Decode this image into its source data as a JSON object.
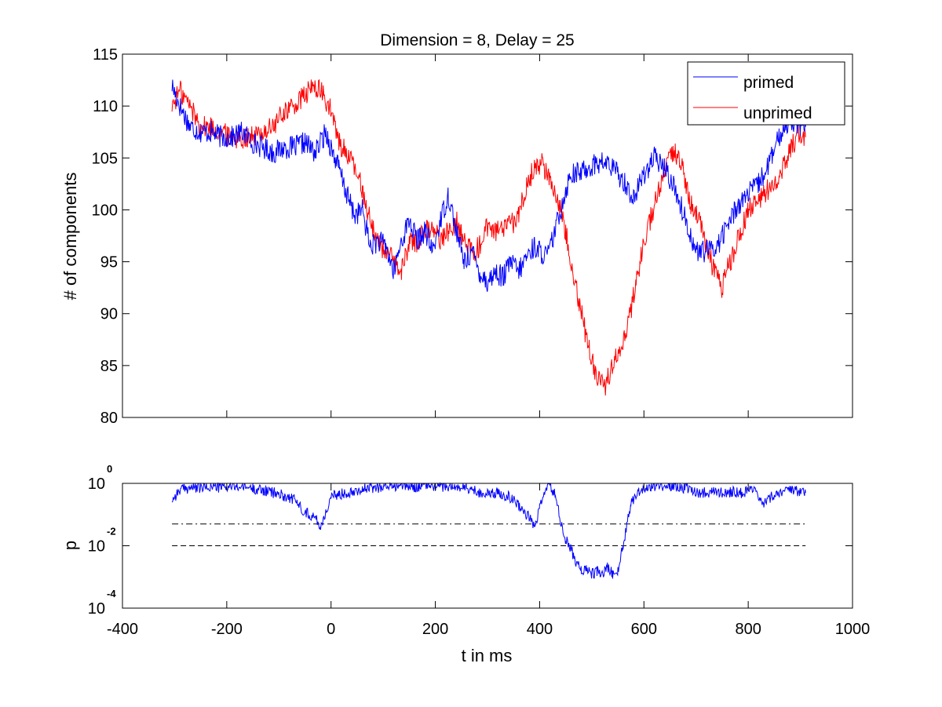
{
  "chart_data": [
    {
      "type": "line",
      "title": "Dimension  = 8, Delay = 25",
      "ylabel": "# of components",
      "xlim": [
        -400,
        1000
      ],
      "ylim": [
        80,
        115
      ],
      "yticks": [
        "80",
        "85",
        "90",
        "95",
        "100",
        "105",
        "110",
        "115"
      ],
      "grid": false,
      "legend": {
        "placement": "top-right",
        "entries": [
          "primed",
          "unprimed"
        ]
      },
      "colors": {
        "primed": "#0000ff",
        "unprimed": "#ff0000"
      },
      "series": [
        {
          "name": "primed",
          "x": [
            -305,
            -290,
            -270,
            -250,
            -230,
            -210,
            -190,
            -170,
            -150,
            -130,
            -110,
            -90,
            -70,
            -50,
            -30,
            -10,
            0,
            15,
            30,
            45,
            60,
            75,
            90,
            105,
            120,
            135,
            150,
            165,
            180,
            195,
            210,
            225,
            240,
            255,
            270,
            285,
            300,
            315,
            330,
            345,
            360,
            375,
            390,
            400,
            415,
            430,
            445,
            460,
            475,
            490,
            510,
            530,
            550,
            565,
            580,
            600,
            620,
            640,
            660,
            680,
            700,
            720,
            740,
            760,
            780,
            800,
            820,
            840,
            860,
            880,
            895,
            910
          ],
          "y": [
            112,
            110,
            108,
            107.5,
            107.5,
            107,
            107,
            107.5,
            106.5,
            106,
            105.5,
            106,
            106,
            106.5,
            105.5,
            107.5,
            106,
            104,
            101.5,
            99.5,
            100,
            96.5,
            97,
            96.5,
            94,
            97,
            99,
            97,
            98,
            96,
            99,
            101.5,
            98,
            95,
            96,
            94,
            93,
            94,
            93.5,
            95,
            94,
            95.5,
            96.5,
            96,
            95.5,
            98,
            101,
            103.5,
            103.5,
            104,
            104.5,
            104.5,
            103.5,
            102.5,
            101,
            103.5,
            105,
            104,
            102,
            99,
            96,
            96,
            96.5,
            98.5,
            100.5,
            101.5,
            102.5,
            104.5,
            107,
            109,
            108,
            108
          ]
        },
        {
          "name": "unprimed",
          "x": [
            -305,
            -290,
            -270,
            -250,
            -230,
            -210,
            -190,
            -170,
            -150,
            -130,
            -110,
            -90,
            -70,
            -50,
            -30,
            -15,
            0,
            15,
            30,
            45,
            60,
            75,
            90,
            105,
            120,
            135,
            150,
            165,
            180,
            195,
            210,
            225,
            240,
            255,
            270,
            285,
            300,
            315,
            330,
            345,
            360,
            375,
            390,
            405,
            420,
            435,
            450,
            465,
            480,
            495,
            510,
            525,
            540,
            555,
            570,
            585,
            600,
            615,
            630,
            645,
            660,
            675,
            690,
            705,
            720,
            735,
            750,
            765,
            780,
            800,
            820,
            840,
            860,
            880,
            895,
            910
          ],
          "y": [
            110,
            111.5,
            110,
            108,
            108,
            107.5,
            107,
            107,
            107,
            107.5,
            108,
            109.5,
            110,
            111,
            112,
            111,
            109.5,
            106.5,
            105.5,
            104,
            102,
            99,
            97,
            96,
            95,
            94,
            97,
            97,
            98,
            98.5,
            97,
            98,
            99,
            97,
            96,
            96.5,
            98.5,
            98,
            98,
            98.5,
            99.5,
            102.5,
            104,
            104.5,
            103,
            101,
            98,
            94,
            90,
            86.5,
            84,
            83,
            85,
            87,
            89,
            93,
            97,
            99.5,
            102,
            104.5,
            105.5,
            104,
            100.5,
            99,
            96.5,
            94,
            92.5,
            95,
            97,
            100,
            101,
            102,
            103.5,
            105.5,
            107.5,
            107
          ]
        }
      ]
    },
    {
      "type": "line",
      "xlabel": "t in ms",
      "ylabel": "p",
      "xlim": [
        -400,
        1000
      ],
      "xticks": [
        "-400",
        "-200",
        "0",
        "200",
        "400",
        "600",
        "800",
        "1000"
      ],
      "yscale": "log",
      "ylim": [
        0.0001,
        1
      ],
      "yticks": [
        {
          "base": "10",
          "exp": "-4"
        },
        {
          "base": "10",
          "exp": "-2"
        },
        {
          "base": "10",
          "exp": "0"
        }
      ],
      "reference_lines": [
        {
          "value": 0.05,
          "style": "dash-dot"
        },
        {
          "value": 0.01,
          "style": "dashed"
        }
      ],
      "colors": {
        "p": "#0000ff",
        "reference": "#000000"
      },
      "series": [
        {
          "x": [
            -305,
            -290,
            -270,
            -250,
            -230,
            -210,
            -190,
            -170,
            -150,
            -130,
            -110,
            -90,
            -70,
            -50,
            -30,
            -20,
            -10,
            0,
            15,
            30,
            45,
            60,
            80,
            100,
            120,
            140,
            160,
            180,
            200,
            220,
            240,
            260,
            280,
            300,
            320,
            340,
            360,
            380,
            390,
            400,
            410,
            420,
            430,
            440,
            450,
            460,
            470,
            480,
            490,
            500,
            510,
            520,
            530,
            540,
            550,
            560,
            575,
            590,
            610,
            630,
            650,
            670,
            690,
            710,
            730,
            750,
            770,
            790,
            810,
            830,
            850,
            870,
            890,
            910
          ],
          "y": [
            0.3,
            0.6,
            0.75,
            0.7,
            0.8,
            0.75,
            0.8,
            0.8,
            0.7,
            0.6,
            0.5,
            0.4,
            0.3,
            0.12,
            0.08,
            0.04,
            0.12,
            0.35,
            0.45,
            0.5,
            0.6,
            0.65,
            0.7,
            0.8,
            0.85,
            0.85,
            0.8,
            0.85,
            0.85,
            0.8,
            0.75,
            0.7,
            0.55,
            0.45,
            0.5,
            0.4,
            0.2,
            0.08,
            0.04,
            0.15,
            0.6,
            0.9,
            0.4,
            0.06,
            0.015,
            0.008,
            0.003,
            0.0015,
            0.002,
            0.0012,
            0.0015,
            0.0012,
            0.002,
            0.0013,
            0.0015,
            0.01,
            0.25,
            0.55,
            0.8,
            0.85,
            0.85,
            0.8,
            0.6,
            0.5,
            0.55,
            0.5,
            0.55,
            0.5,
            0.6,
            0.2,
            0.45,
            0.6,
            0.55,
            0.5
          ]
        }
      ]
    }
  ]
}
